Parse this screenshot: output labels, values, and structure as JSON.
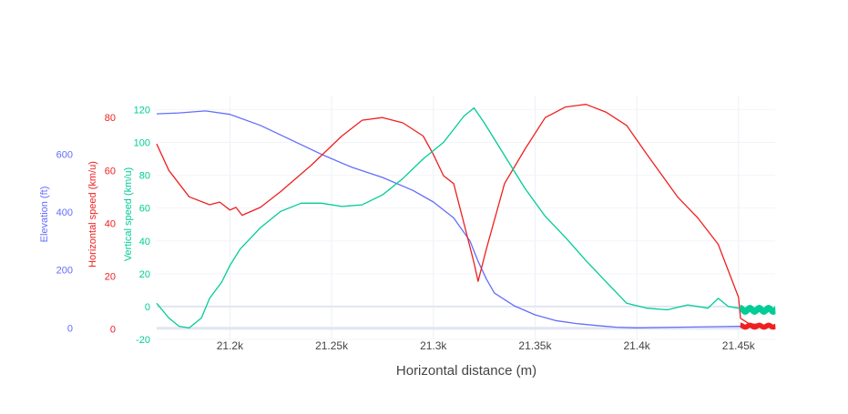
{
  "chart_data": {
    "type": "line",
    "title": "",
    "xlabel": "Horizontal distance (m)",
    "xlim": [
      21164,
      21468
    ],
    "xticks": [
      {
        "value": 21200,
        "label": "21.2k"
      },
      {
        "value": 21250,
        "label": "21.25k"
      },
      {
        "value": 21300,
        "label": "21.3k"
      },
      {
        "value": 21350,
        "label": "21.35k"
      },
      {
        "value": 21400,
        "label": "21.4k"
      },
      {
        "value": 21450,
        "label": "21.45k"
      }
    ],
    "grid": true,
    "legend": "none",
    "axes": [
      {
        "id": "elev",
        "label": "Elevation (ft)",
        "color": "#636efa",
        "ylim": [
          -40,
          800
        ],
        "ticks": [
          0,
          200,
          400,
          600
        ]
      },
      {
        "id": "hspeed",
        "label": "Horizontal speed (km/u)",
        "color": "#ef2020",
        "ylim": [
          -4,
          88
        ],
        "ticks": [
          0,
          20,
          40,
          60,
          80
        ]
      },
      {
        "id": "vspeed",
        "label": "Vertical speed (km/u)",
        "color": "#00cc96",
        "ylim": [
          -20,
          128
        ],
        "ticks": [
          -20,
          0,
          20,
          40,
          60,
          80,
          100,
          120
        ]
      }
    ],
    "series": [
      {
        "axis": "elev",
        "color": "#636efa",
        "x": [
          21164,
          21175,
          21188,
          21200,
          21215,
          21230,
          21245,
          21260,
          21275,
          21290,
          21300,
          21310,
          21318,
          21322,
          21326,
          21330,
          21340,
          21350,
          21360,
          21370,
          21380,
          21390,
          21400,
          21420,
          21440,
          21450,
          21468
        ],
        "y": [
          740,
          743,
          750,
          738,
          700,
          650,
          600,
          555,
          520,
          475,
          435,
          380,
          300,
          230,
          170,
          120,
          75,
          45,
          25,
          15,
          8,
          2,
          0,
          2,
          4,
          5,
          5
        ]
      },
      {
        "axis": "hspeed",
        "color": "#ef2020",
        "x": [
          21164,
          21170,
          21180,
          21190,
          21195,
          21200,
          21203,
          21206,
          21215,
          21225,
          21240,
          21255,
          21265,
          21275,
          21285,
          21295,
          21300,
          21305,
          21310,
          21315,
          21320,
          21322,
          21326,
          21335,
          21345,
          21355,
          21365,
          21375,
          21385,
          21395,
          21405,
          21420,
          21430,
          21440,
          21445,
          21450,
          21451,
          21455,
          21468
        ],
        "y": [
          70,
          60,
          50,
          47,
          48,
          45,
          46,
          43,
          46,
          52,
          62,
          73,
          79,
          80,
          78,
          73,
          66,
          58,
          55,
          40,
          25,
          18,
          30,
          55,
          68,
          80,
          84,
          85,
          82,
          77,
          66,
          50,
          42,
          32,
          22,
          12,
          4,
          2,
          1
        ]
      },
      {
        "axis": "vspeed",
        "color": "#00cc96",
        "x": [
          21164,
          21170,
          21175,
          21180,
          21186,
          21190,
          21196,
          21200,
          21205,
          21215,
          21225,
          21235,
          21245,
          21255,
          21265,
          21275,
          21285,
          21295,
          21305,
          21310,
          21315,
          21320,
          21325,
          21335,
          21345,
          21355,
          21365,
          21375,
          21385,
          21395,
          21405,
          21415,
          21425,
          21435,
          21440,
          21445,
          21450,
          21455,
          21468
        ],
        "y": [
          2,
          -7,
          -12,
          -13,
          -7,
          5,
          15,
          25,
          35,
          48,
          58,
          63,
          63,
          61,
          62,
          68,
          78,
          90,
          100,
          108,
          116,
          121,
          112,
          92,
          72,
          55,
          42,
          28,
          15,
          2,
          -1,
          -2,
          1,
          -1,
          5,
          0,
          -1,
          -2,
          -2
        ]
      }
    ]
  }
}
